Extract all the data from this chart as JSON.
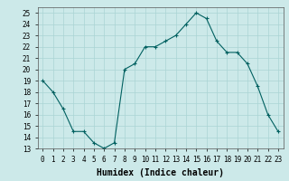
{
  "x": [
    0,
    1,
    2,
    3,
    4,
    5,
    6,
    7,
    8,
    9,
    10,
    11,
    12,
    13,
    14,
    15,
    16,
    17,
    18,
    19,
    20,
    21,
    22,
    23
  ],
  "y": [
    19,
    18,
    16.5,
    14.5,
    14.5,
    13.5,
    13,
    13.5,
    20,
    20.5,
    22,
    22,
    22.5,
    23,
    24,
    25,
    24.5,
    22.5,
    21.5,
    21.5,
    20.5,
    18.5,
    16,
    14.5
  ],
  "line_color": "#006060",
  "marker": "+",
  "bg_color": "#cce9e9",
  "grid_color": "#aad4d4",
  "xlabel": "Humidex (Indice chaleur)",
  "ylim": [
    13,
    25.5
  ],
  "xlim": [
    -0.5,
    23.5
  ],
  "yticks": [
    13,
    14,
    15,
    16,
    17,
    18,
    19,
    20,
    21,
    22,
    23,
    24,
    25
  ],
  "xticks": [
    0,
    1,
    2,
    3,
    4,
    5,
    6,
    7,
    8,
    9,
    10,
    11,
    12,
    13,
    14,
    15,
    16,
    17,
    18,
    19,
    20,
    21,
    22,
    23
  ],
  "tick_label_fontsize": 5.5,
  "xlabel_fontsize": 7
}
